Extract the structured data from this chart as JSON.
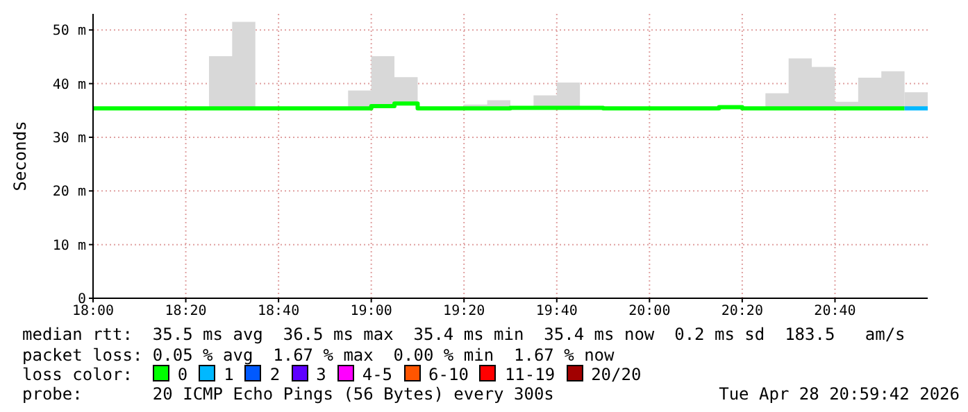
{
  "chart_data": {
    "type": "step",
    "ylabel": "Seconds",
    "legend_title": "loss color:",
    "legend": "bottom",
    "grid": true,
    "marker": "none",
    "xlim": [
      18,
      21
    ],
    "xticks": [
      {
        "value": 18,
        "label": "18:00"
      },
      {
        "value": 18.3333,
        "label": "18:20"
      },
      {
        "value": 18.6667,
        "label": "18:40"
      },
      {
        "value": 19,
        "label": "19:00"
      },
      {
        "value": 19.3333,
        "label": "19:20"
      },
      {
        "value": 19.6667,
        "label": "19:40"
      },
      {
        "value": 20,
        "label": "20:00"
      },
      {
        "value": 20.3333,
        "label": "20:20"
      },
      {
        "value": 20.6667,
        "label": "20:40"
      }
    ],
    "ylim": [
      0,
      53
    ],
    "yticks": [
      0,
      {
        "value": 10,
        "label": "10 m"
      },
      {
        "value": 20,
        "label": "20 m"
      },
      {
        "value": 30,
        "label": "30 m"
      },
      {
        "value": 40,
        "label": "40 m"
      },
      {
        "value": 50,
        "label": "50 m"
      }
    ],
    "series": [
      {
        "name": "0",
        "color": "#00ff00",
        "x": [
          18,
          18.0833,
          18.1667,
          18.25,
          18.3333,
          18.4167,
          18.5,
          18.5833,
          18.6667,
          18.75,
          18.8333,
          18.9167,
          19,
          19.0833,
          19.1667,
          19.25,
          19.3333,
          19.4167,
          19.5,
          19.5833,
          19.6667,
          19.75,
          19.8333,
          19.9167,
          20,
          20.0833,
          20.1667,
          20.25,
          20.3333,
          20.4167,
          20.5,
          20.5833,
          20.6667,
          20.75,
          20.8333,
          20.9167
        ],
        "values": [
          35.4,
          35.4,
          35.4,
          35.4,
          35.4,
          35.4,
          35.4,
          35.4,
          35.4,
          35.4,
          35.4,
          35.4,
          35.8,
          36.3,
          35.4,
          35.4,
          35.4,
          35.4,
          35.5,
          35.5,
          35.5,
          35.5,
          35.4,
          35.4,
          35.4,
          35.4,
          35.4,
          35.6,
          35.4,
          35.4,
          35.4,
          35.4,
          35.4,
          35.4,
          35.4,
          35.4
        ],
        "lower": [
          35.4,
          35.4,
          35.4,
          35.4,
          35.4,
          35.4,
          35.4,
          35.4,
          35.4,
          35.4,
          35.4,
          35.4,
          35.8,
          36.3,
          35.4,
          35.4,
          35.4,
          35.4,
          35.5,
          35.5,
          35.5,
          35.5,
          35.4,
          35.4,
          35.4,
          35.4,
          35.4,
          35.6,
          35.4,
          35.4,
          35.4,
          35.4,
          35.4,
          35.4,
          35.4,
          35.4
        ],
        "upper": [
          35.4,
          35.4,
          35.4,
          35.4,
          35.4,
          45.1,
          51.5,
          35.4,
          35.4,
          35.4,
          35.4,
          38.7,
          45.1,
          41.2,
          35.4,
          35.4,
          36.1,
          36.9,
          35.8,
          37.8,
          40.2,
          35.8,
          35.7,
          35.4,
          35.4,
          35.4,
          35.4,
          35.6,
          35.4,
          38.2,
          44.7,
          43.1,
          36.6,
          41.1,
          42.3,
          42.3
        ]
      },
      {
        "name": "1",
        "color": "#00b8ff",
        "x": [
          20.9167,
          21
        ],
        "values": [
          35.4,
          35.4
        ],
        "lower": [
          35.4,
          35.4
        ],
        "upper": [
          38.4,
          38.4
        ]
      },
      {
        "name": "2",
        "color": "#0059ff"
      },
      {
        "name": "3",
        "color": "#5e00ff"
      },
      {
        "name": "4-5",
        "color": "#ff00ff"
      },
      {
        "name": "6-10",
        "color": "#ff5500"
      },
      {
        "name": "11-19",
        "color": "#ff0000"
      },
      {
        "name": "20/20",
        "color": "#a10000"
      }
    ],
    "annotations": [
      "median rtt:  35.5 ms avg  36.5 ms max  35.4 ms min  35.4 ms now  0.2 ms sd  183.5   am/s",
      "packet loss: 0.05 % avg  1.67 % max  0.00 % min  1.67 % now",
      "probe:       20 ICMP Echo Pings (56 Bytes) every 300s",
      "Tue Apr 28 20:59:42 2026"
    ]
  }
}
